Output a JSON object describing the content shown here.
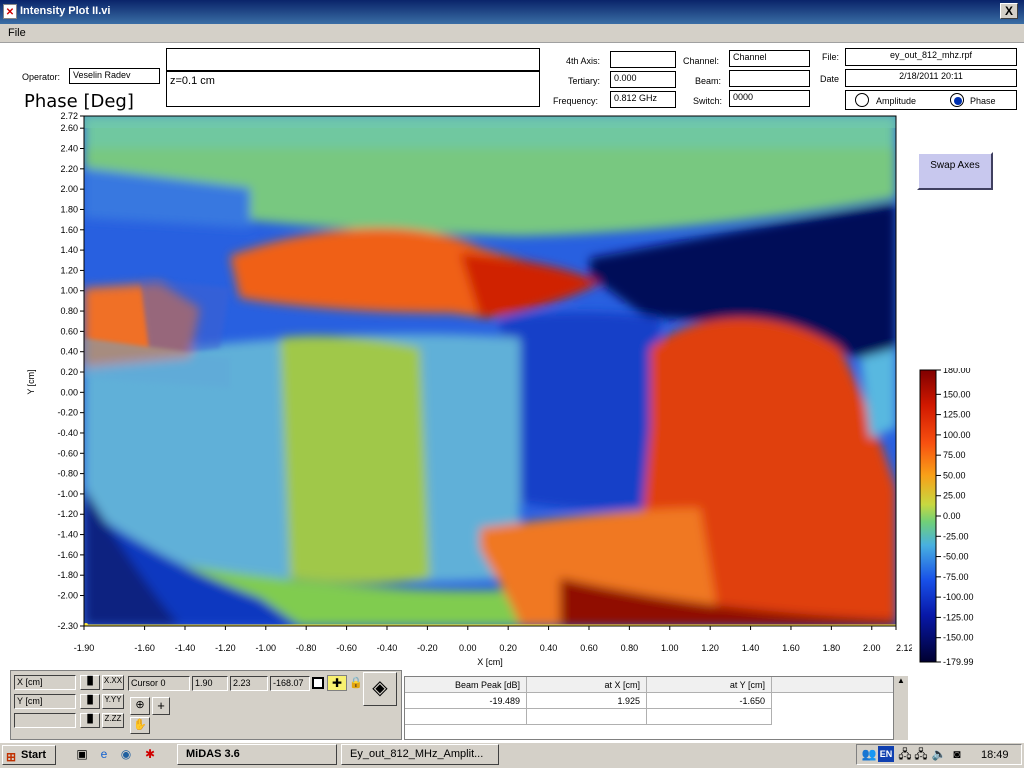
{
  "window": {
    "title": "Intensity Plot II.vi",
    "close_symbol": "X"
  },
  "menu": {
    "file": "File"
  },
  "header": {
    "operator_label": "Operator:",
    "operator_value": "Veselin Radev",
    "top_note": "",
    "note": "z=0.1 cm",
    "fourth_axis_label": "4th Axis:",
    "fourth_axis_value": "",
    "tertiary_label": "Tertiary:",
    "tertiary_value": "0.000",
    "frequency_label": "Frequency:",
    "frequency_value": "0.812 GHz",
    "channel_label": "Channel:",
    "channel_value": "Channel",
    "beam_label": "Beam:",
    "beam_value": "",
    "switch_label": "Switch:",
    "switch_value": "0000",
    "file_label": "File:",
    "file_value": "ey_out_812_mhz.rpf",
    "date_label": "Date",
    "date_value": "2/18/2011 20:11",
    "mode_options": [
      "Amplitude",
      "Phase"
    ],
    "mode_selected": "Phase"
  },
  "plot": {
    "title": "Phase [Deg]",
    "xlabel": "X  [cm]",
    "ylabel": "Y  [cm]",
    "xlim": [
      -1.9,
      2.12
    ],
    "ylim": [
      -2.3,
      2.72
    ],
    "x_ticks": [
      "-1.90",
      "-1.60",
      "-1.40",
      "-1.20",
      "-1.00",
      "-0.80",
      "-0.60",
      "-0.40",
      "-0.20",
      "0.00",
      "0.20",
      "0.40",
      "0.60",
      "0.80",
      "1.00",
      "1.20",
      "1.40",
      "1.60",
      "1.80",
      "2.00",
      "2.12"
    ],
    "y_ticks": [
      "2.72",
      "2.60",
      "2.40",
      "2.20",
      "2.00",
      "1.80",
      "1.60",
      "1.40",
      "1.20",
      "1.00",
      "0.80",
      "0.60",
      "0.40",
      "0.20",
      "0.00",
      "-0.20",
      "-0.40",
      "-0.60",
      "-0.80",
      "-1.00",
      "-1.20",
      "-1.40",
      "-1.60",
      "-1.80",
      "-2.00",
      "-2.30"
    ],
    "colorbar_ticks": [
      "180.00",
      "150.00",
      "125.00",
      "100.00",
      "75.00",
      "50.00",
      "25.00",
      "0.00",
      "-25.00",
      "-50.00",
      "-75.00",
      "-100.00",
      "-125.00",
      "-150.00",
      "-179.99"
    ],
    "colors": {
      "low": "#000040",
      "blue": "#0030c8",
      "mid_blue": "#3a80e8",
      "cyan": "#60c8c0",
      "green": "#78d060",
      "orange": "#f06818",
      "red": "#b01000"
    }
  },
  "swap_axes": {
    "label": "Swap Axes"
  },
  "cursor_panel": {
    "x_label": "X  [cm]",
    "y_label": "Y  [cm]",
    "third_label": "",
    "cursor_name": "Cursor 0",
    "cursor_x": "1.90",
    "cursor_y": "2.23",
    "cursor_value": "-168.07",
    "x_btn": "X.XX",
    "y_btn": "Y.YY",
    "z_btn": "Z.ZZ"
  },
  "results": {
    "headers": [
      "Beam Peak [dB]",
      "at X  [cm]",
      "at Y  [cm]"
    ],
    "row": [
      "-19.489",
      "1.925",
      "-1.650"
    ]
  },
  "taskbar": {
    "start": "Start",
    "task1": "MiDAS 3.6",
    "task2": "Ey_out_812_MHz_Amplit...",
    "lang": "EN",
    "clock": "18:49"
  }
}
